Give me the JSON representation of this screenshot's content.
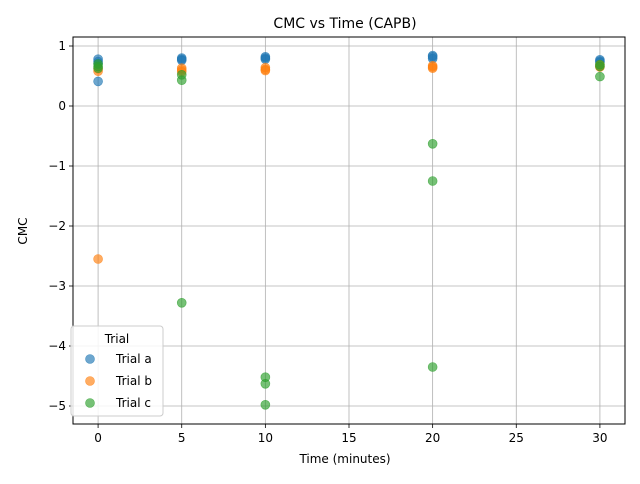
{
  "chart_data": {
    "type": "scatter",
    "title": "CMC vs Time (CAPB)",
    "xlabel": "Time (minutes)",
    "ylabel": "CMC",
    "xlim": [
      -1.5,
      31.5
    ],
    "ylim": [
      -5.3,
      1.15
    ],
    "xticks": [
      0,
      5,
      10,
      15,
      20,
      25,
      30
    ],
    "yticks": [
      -5,
      -4,
      -3,
      -2,
      -1,
      0,
      1
    ],
    "xtick_labels": [
      "0",
      "5",
      "10",
      "15",
      "20",
      "25",
      "30"
    ],
    "ytick_labels": [
      "−5",
      "−4",
      "−3",
      "−2",
      "−1",
      "0",
      "1"
    ],
    "grid": true,
    "legend": {
      "title": "Trial",
      "placement": "lower-left"
    },
    "series": [
      {
        "name": "Trial a",
        "color": "#1f77b4",
        "points": [
          [
            0,
            0.78
          ],
          [
            0,
            0.74
          ],
          [
            0,
            0.71
          ],
          [
            0,
            0.41
          ],
          [
            5,
            0.8
          ],
          [
            5,
            0.78
          ],
          [
            5,
            0.76
          ],
          [
            10,
            0.82
          ],
          [
            10,
            0.8
          ],
          [
            10,
            0.78
          ],
          [
            20,
            0.84
          ],
          [
            20,
            0.82
          ],
          [
            20,
            0.79
          ],
          [
            30,
            0.77
          ],
          [
            30,
            0.75
          ],
          [
            30,
            0.73
          ]
        ]
      },
      {
        "name": "Trial b",
        "color": "#ff7f0e",
        "points": [
          [
            0,
            0.62
          ],
          [
            0,
            0.58
          ],
          [
            0,
            -2.55
          ],
          [
            5,
            0.63
          ],
          [
            5,
            0.6
          ],
          [
            5,
            0.57
          ],
          [
            10,
            0.64
          ],
          [
            10,
            0.61
          ],
          [
            10,
            0.59
          ],
          [
            20,
            0.67
          ],
          [
            20,
            0.65
          ],
          [
            20,
            0.63
          ],
          [
            30,
            0.68
          ],
          [
            30,
            0.66
          ],
          [
            30,
            0.65
          ]
        ]
      },
      {
        "name": "Trial c",
        "color": "#2ca02c",
        "points": [
          [
            0,
            0.7
          ],
          [
            0,
            0.66
          ],
          [
            0,
            0.63
          ],
          [
            5,
            0.52
          ],
          [
            5,
            0.43
          ],
          [
            5,
            -3.28
          ],
          [
            10,
            -4.52
          ],
          [
            10,
            -4.63
          ],
          [
            10,
            -4.98
          ],
          [
            20,
            -0.63
          ],
          [
            20,
            -1.25
          ],
          [
            20,
            -4.35
          ],
          [
            30,
            0.69
          ],
          [
            30,
            0.66
          ],
          [
            30,
            0.49
          ]
        ]
      }
    ]
  }
}
